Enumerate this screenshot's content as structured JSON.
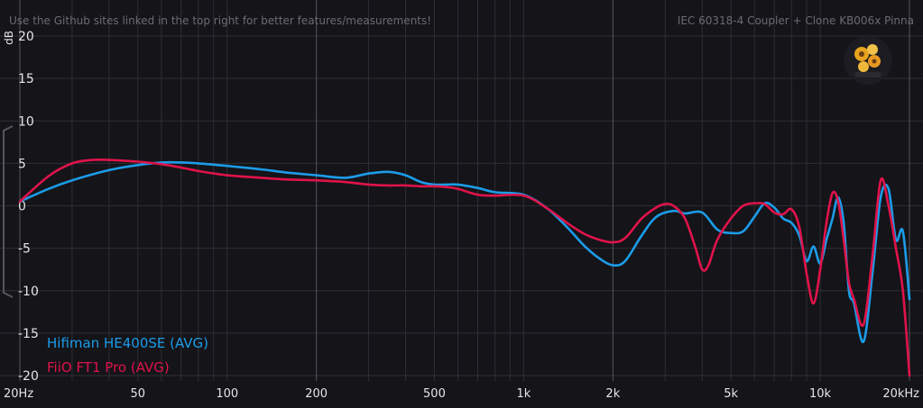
{
  "header": {
    "notice": "Use the Github sites linked in the top right for better features/measurements!",
    "rig": "IEC 60318-4 Coupler + Clone KB006x Pinna"
  },
  "colors": {
    "background": "#141419",
    "grid": "#2e2e34",
    "grid_major": "#56565c",
    "tick_text": "#e6e6e6",
    "header_text": "#6b6b72"
  },
  "chart_data": {
    "type": "line",
    "xscale": "log",
    "xlim": [
      20,
      20000
    ],
    "ylim": [
      -20,
      20
    ],
    "ylabel": "dB",
    "y_ticks": [
      20,
      15,
      10,
      5,
      0,
      -5,
      -10,
      -15,
      -20
    ],
    "y_tick_labels": [
      "20",
      "15",
      "10",
      "5",
      "0",
      "-5",
      "-10",
      "-15",
      "-20"
    ],
    "x_ticks": [
      20,
      50,
      100,
      200,
      500,
      1000,
      2000,
      5000,
      10000,
      20000
    ],
    "x_tick_labels": [
      "20Hz",
      "50",
      "100",
      "200",
      "500",
      "1k",
      "2k",
      "5k",
      "10k",
      "20kHz"
    ],
    "grid": true,
    "legend_position": "bottom-left",
    "series": [
      {
        "name": "Hifiman HE400SE (AVG)",
        "color": "#1c9ce8",
        "x": [
          20,
          25,
          30,
          40,
          50,
          60,
          70,
          80,
          100,
          130,
          160,
          200,
          250,
          300,
          350,
          400,
          450,
          500,
          550,
          600,
          700,
          800,
          1000,
          1200,
          1400,
          1600,
          1800,
          2000,
          2200,
          2500,
          2800,
          3200,
          3500,
          4000,
          4500,
          5000,
          5500,
          6000,
          6500,
          7000,
          7500,
          8000,
          8500,
          9000,
          9500,
          10000,
          10500,
          11000,
          11500,
          12000,
          12500,
          13000,
          14000,
          15000,
          16000,
          17000,
          18000,
          19000,
          20000
        ],
        "y": [
          0.5,
          2.0,
          3.0,
          4.2,
          4.8,
          5.1,
          5.1,
          5.0,
          4.7,
          4.3,
          3.9,
          3.6,
          3.3,
          3.8,
          4.0,
          3.6,
          2.8,
          2.5,
          2.5,
          2.5,
          2.1,
          1.6,
          1.3,
          -0.3,
          -2.5,
          -4.7,
          -6.2,
          -7.0,
          -6.5,
          -3.5,
          -1.3,
          -0.6,
          -0.9,
          -0.8,
          -2.8,
          -3.2,
          -3.0,
          -1.3,
          0.3,
          -0.2,
          -1.5,
          -2.0,
          -3.5,
          -6.5,
          -4.8,
          -6.8,
          -4.0,
          -1.5,
          1.0,
          -2.0,
          -10.0,
          -11.5,
          -16.0,
          -8.0,
          1.0,
          2.0,
          -4.0,
          -3.0,
          -11.0
        ]
      },
      {
        "name": "FiiO FT1 Pro (AVG)",
        "color": "#e0134a",
        "x": [
          20,
          25,
          30,
          35,
          40,
          50,
          60,
          70,
          80,
          100,
          130,
          160,
          200,
          250,
          300,
          350,
          400,
          450,
          500,
          550,
          600,
          700,
          800,
          1000,
          1200,
          1400,
          1600,
          1800,
          2000,
          2200,
          2500,
          2800,
          3000,
          3200,
          3500,
          3800,
          4000,
          4200,
          4500,
          5000,
          5500,
          6000,
          6500,
          7000,
          7500,
          8000,
          8500,
          9000,
          9500,
          10000,
          10500,
          11000,
          11500,
          12000,
          12500,
          13000,
          14000,
          15000,
          16000,
          17000,
          18000,
          19000,
          20000
        ],
        "y": [
          0.5,
          3.5,
          5.0,
          5.4,
          5.4,
          5.2,
          4.9,
          4.5,
          4.1,
          3.6,
          3.3,
          3.1,
          3.0,
          2.8,
          2.5,
          2.4,
          2.4,
          2.3,
          2.3,
          2.2,
          2.0,
          1.3,
          1.2,
          1.2,
          -0.3,
          -2.0,
          -3.3,
          -4.0,
          -4.3,
          -3.8,
          -1.5,
          -0.2,
          0.2,
          0.0,
          -1.5,
          -5.0,
          -7.5,
          -7.0,
          -4.0,
          -1.5,
          0.0,
          0.3,
          0.2,
          -0.8,
          -1.0,
          -0.4,
          -2.5,
          -8.0,
          -11.5,
          -7.5,
          -2.0,
          1.5,
          0.5,
          -4.0,
          -9.0,
          -11.0,
          -14.0,
          -6.0,
          3.0,
          0.0,
          -5.0,
          -10.0,
          -20.0
        ]
      }
    ]
  }
}
